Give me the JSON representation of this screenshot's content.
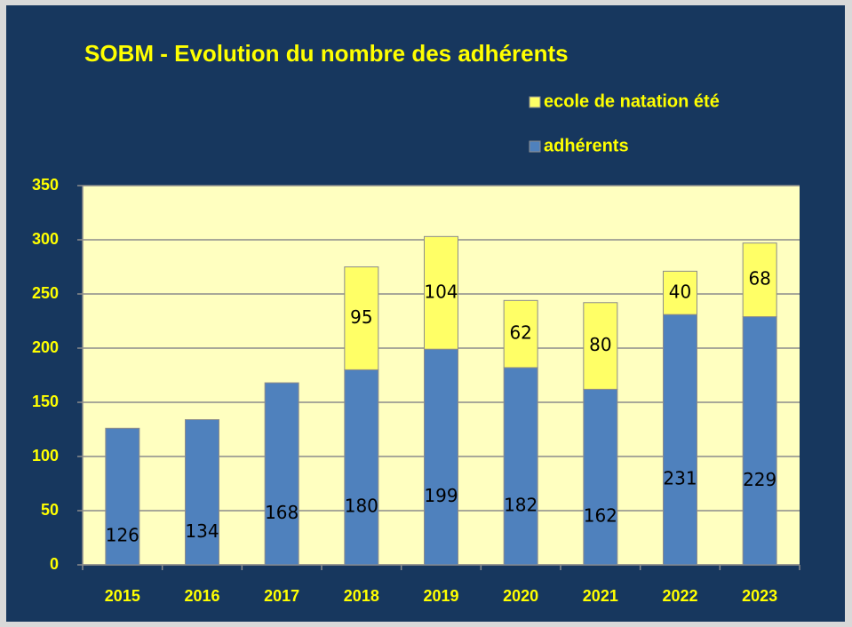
{
  "chart_data": {
    "type": "stacked_bar",
    "title": "SOBM - Evolution du nombre des adhérents",
    "categories": [
      "2015",
      "2016",
      "2017",
      "2018",
      "2019",
      "2020",
      "2021",
      "2022",
      "2023"
    ],
    "series": [
      {
        "name": "adhérents",
        "color": "#4f81bd",
        "values": [
          126,
          134,
          168,
          180,
          199,
          182,
          162,
          231,
          229
        ]
      },
      {
        "name": "ecole de natation été",
        "color": "#ffff66",
        "values": [
          null,
          null,
          null,
          95,
          104,
          62,
          80,
          40,
          68
        ]
      }
    ],
    "ylim": [
      0,
      350
    ],
    "yticks": [
      0,
      50,
      100,
      150,
      200,
      250,
      300,
      350
    ],
    "grid": true,
    "legend": "top-right"
  }
}
